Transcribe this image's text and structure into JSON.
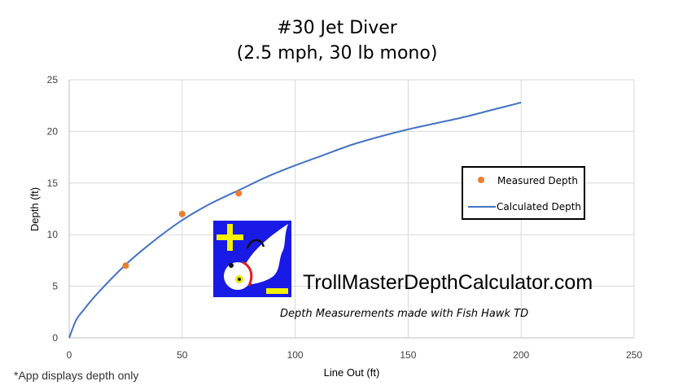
{
  "chart_data": {
    "type": "scatter",
    "title": "#30 Jet Diver",
    "subtitle": "(2.5 mph, 30 lb mono)",
    "xlabel": "Line Out (ft)",
    "ylabel": "Depth (ft)",
    "xlim": [
      0,
      250
    ],
    "ylim": [
      0,
      25
    ],
    "xticks": [
      0,
      50,
      100,
      150,
      200,
      250
    ],
    "yticks": [
      0,
      5,
      10,
      15,
      20,
      25
    ],
    "grid": true,
    "legend_position": "right",
    "series": [
      {
        "name": "Measured Depth",
        "kind": "scatter",
        "color": "#ED7D31",
        "x": [
          25,
          50,
          75
        ],
        "y": [
          7.0,
          12.0,
          14.0
        ]
      },
      {
        "name": "Calculated Depth",
        "kind": "line",
        "color": "#4472C4",
        "x": [
          0,
          3,
          6,
          12.5,
          25,
          37.5,
          50,
          62.5,
          75,
          87.5,
          100,
          112.5,
          125,
          137.5,
          150,
          162.5,
          175,
          187.5,
          200
        ],
        "y": [
          0,
          1.7,
          2.6,
          4.3,
          7.1,
          9.4,
          11.4,
          13.0,
          14.3,
          15.6,
          16.7,
          17.7,
          18.7,
          19.5,
          20.2,
          20.8,
          21.4,
          22.1,
          22.8
        ]
      }
    ],
    "annotations": {
      "website": "TrollMasterDepthCalculator.com",
      "caption": "Depth Measurements made with Fish Hawk TD",
      "footnote": "*App displays depth only"
    }
  },
  "logo": {
    "icon": "lure-plus-minus-logo",
    "background": "#1A1AE6",
    "plus_minus_color": "#F2F200",
    "collar_color": "#E02020"
  }
}
